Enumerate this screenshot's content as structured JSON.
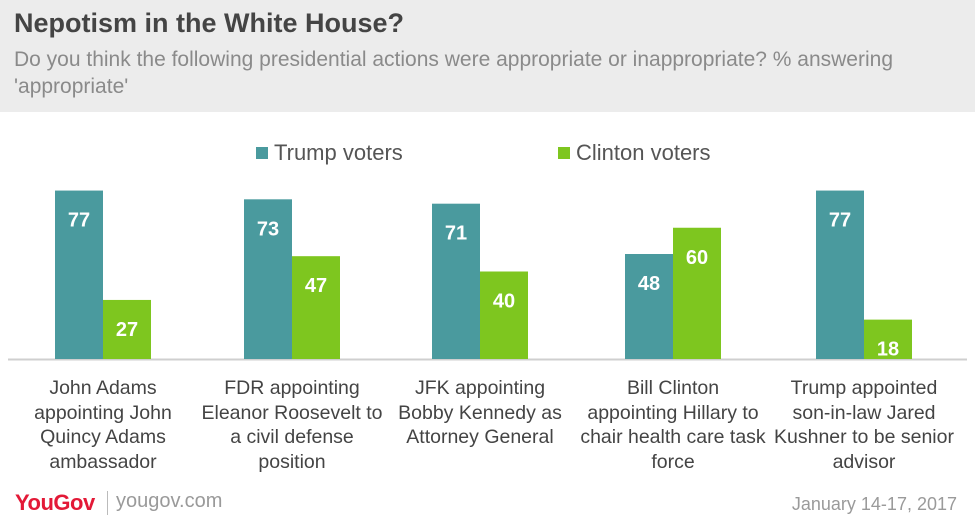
{
  "header": {
    "title": "Nepotism in the White House?",
    "subtitle": "Do you think the following presidential actions were appropriate or inappropriate? % answering 'appropriate'"
  },
  "colors": {
    "trump": "#4a9a9e",
    "clinton": "#7ec61f",
    "baseline": "#cfcfcf",
    "brand": "#e31937"
  },
  "chart_data": {
    "type": "bar",
    "title": "Nepotism in the White House?",
    "subtitle": "Do you think the following presidential actions were appropriate or inappropriate? % answering 'appropriate'",
    "categories": [
      "John Adams appointing John Quincy Adams ambassador",
      "FDR appointing Eleanor Roosevelt to a civil defense position",
      "JFK appointing Bobby Kennedy as Attorney General",
      "Bill Clinton appointing Hillary to chair health care task force",
      "Trump appointed son-in-law Jared Kushner to be senior advisor"
    ],
    "series": [
      {
        "name": "Trump voters",
        "values": [
          77,
          73,
          71,
          48,
          77
        ]
      },
      {
        "name": "Clinton voters",
        "values": [
          27,
          47,
          40,
          60,
          18
        ]
      }
    ],
    "ylim": [
      0,
      80
    ],
    "legend_position": "top-center",
    "grid": false
  },
  "category_labels": [
    "John Adams appointing John Quincy Adams ambassador",
    "FDR appointing Eleanor Roosevelt to a civil defense position",
    "JFK appointing Bobby Kennedy as Attorney General",
    "Bill Clinton appointing Hillary to chair health care task force",
    "Trump appointed son-in-law Jared Kushner to be senior advisor"
  ],
  "footer": {
    "logo": "YouGov",
    "site": "yougov.com",
    "date": "January 14-17, 2017"
  }
}
